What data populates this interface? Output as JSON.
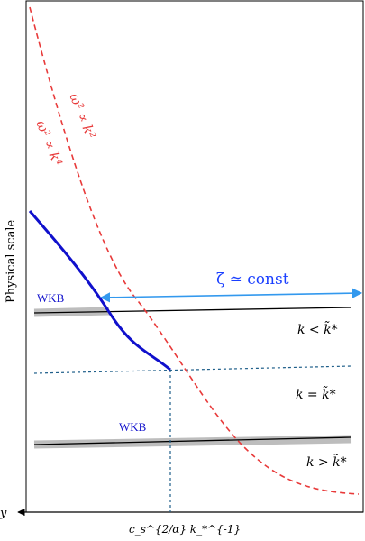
{
  "labels": {
    "y_axis": "Physical scale",
    "x_axis": "y",
    "x_tick": "c_s^{2/α} k_*^{-1}",
    "wkb_upper": "WKB",
    "wkb_lower": "WKB",
    "dispersion_k2": "ω² ∝ k²",
    "dispersion_k4": "ω² ∝ k⁴",
    "zeta_const": "ζ ≃ const",
    "k_less": "k < k̃*",
    "k_equal": "k = k̃*",
    "k_greater": "k > k̃*"
  },
  "colors": {
    "hubble_curve": "#e83a3a",
    "wkb_curve": "#1010cc",
    "zeta_arrow": "#3399ee",
    "crossing_line": "#1f5f8a",
    "band": "#bdbdbd"
  }
}
